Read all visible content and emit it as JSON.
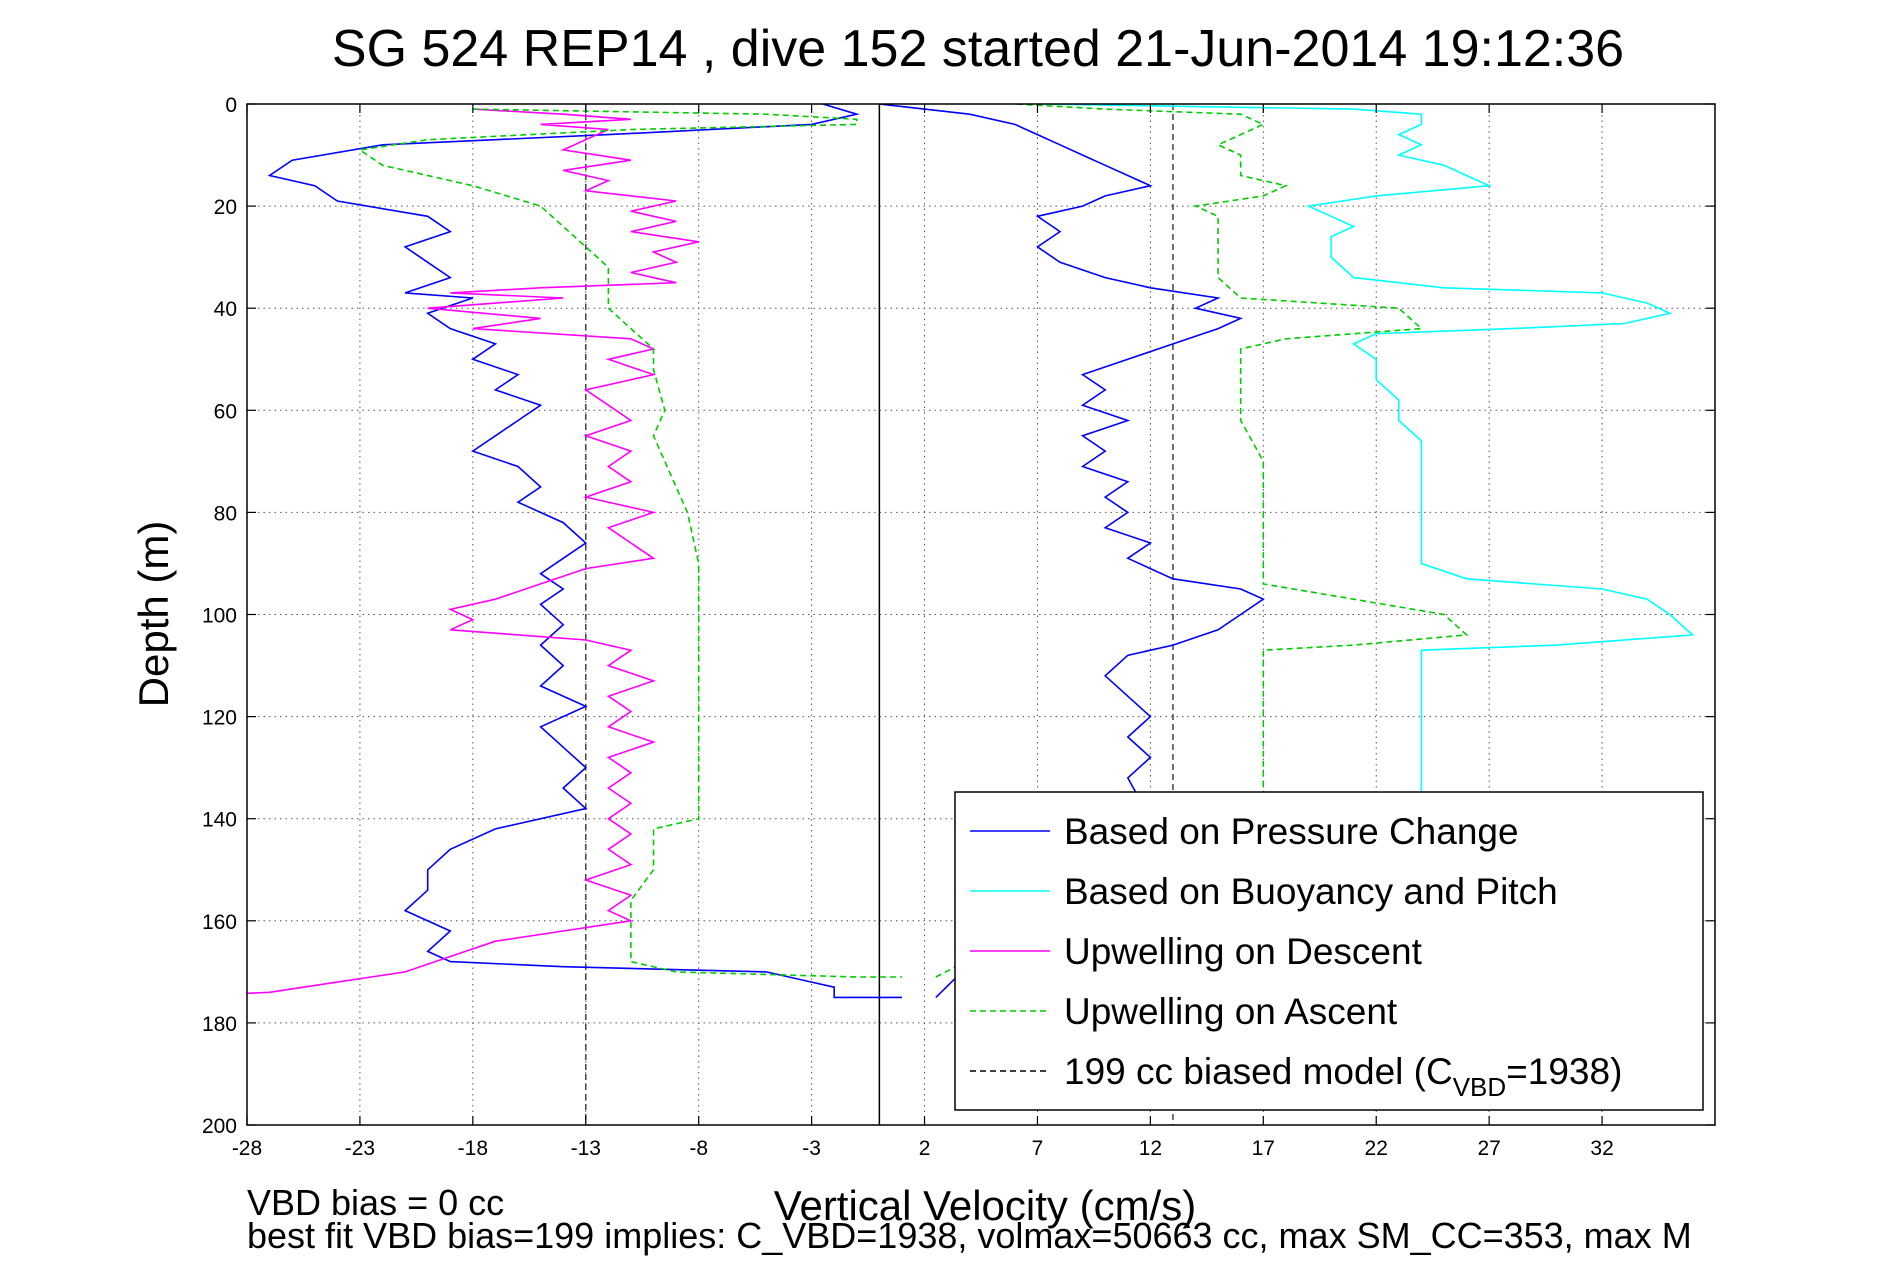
{
  "chart_data": {
    "type": "line",
    "title": "SG 524   REP14  , dive 152 started 21-Jun-2014 19:12:36",
    "xlabel": "Vertical Velocity (cm/s)",
    "ylabel": "Depth (m)",
    "xlim": [
      -28,
      37
    ],
    "ylim": [
      0,
      200
    ],
    "y_reversed": true,
    "grid": true,
    "xticks": [
      -28,
      -23,
      -18,
      -13,
      -8,
      -3,
      2,
      7,
      12,
      17,
      22,
      27,
      32
    ],
    "yticks": [
      0,
      20,
      40,
      60,
      80,
      100,
      120,
      140,
      160,
      180,
      200
    ],
    "vlines": [
      {
        "x": 0,
        "style": "solid"
      },
      {
        "x": -13,
        "style": "dashed"
      },
      {
        "x": 13,
        "style": "dashed"
      }
    ],
    "legend_position": "bottom-right",
    "legend": [
      {
        "label": "Based on Pressure Change",
        "color": "#0000ff",
        "style": "solid"
      },
      {
        "label": "Based on Buoyancy and Pitch",
        "color": "#00ffff",
        "style": "solid"
      },
      {
        "label": "Upwelling on Descent",
        "color": "#ff00ff",
        "style": "solid"
      },
      {
        "label": "Upwelling on Ascent",
        "color": "#00cc00",
        "style": "dashed"
      },
      {
        "label": "199 cc biased model (C",
        "sub": "VBD",
        "tail": "=1938)",
        "color": "#000000",
        "style": "dashed"
      }
    ],
    "series": [
      {
        "name": "Based on Pressure Change",
        "color": "#0000ff",
        "dash": false,
        "points": [
          [
            -2.5,
            0
          ],
          [
            -1,
            2
          ],
          [
            -3,
            4
          ],
          [
            -12,
            6
          ],
          [
            -22,
            8
          ],
          [
            -26,
            11
          ],
          [
            -27,
            14
          ],
          [
            -25,
            16
          ],
          [
            -24,
            19
          ],
          [
            -20,
            22
          ],
          [
            -19,
            25
          ],
          [
            -21,
            28
          ],
          [
            -20,
            31
          ],
          [
            -19,
            34
          ],
          [
            -21,
            37
          ],
          [
            -18,
            38
          ],
          [
            -20,
            41
          ],
          [
            -19,
            44
          ],
          [
            -17,
            47
          ],
          [
            -18,
            50
          ],
          [
            -16,
            53
          ],
          [
            -17,
            56
          ],
          [
            -15,
            59
          ],
          [
            -16,
            62
          ],
          [
            -17,
            65
          ],
          [
            -18,
            68
          ],
          [
            -16,
            71
          ],
          [
            -15,
            75
          ],
          [
            -16,
            78
          ],
          [
            -14,
            82
          ],
          [
            -13,
            86
          ],
          [
            -14,
            89
          ],
          [
            -15,
            92
          ],
          [
            -14,
            95
          ],
          [
            -15,
            98
          ],
          [
            -14,
            102
          ],
          [
            -15,
            106
          ],
          [
            -14,
            110
          ],
          [
            -15,
            114
          ],
          [
            -13,
            118
          ],
          [
            -15,
            122
          ],
          [
            -14,
            126
          ],
          [
            -13,
            130
          ],
          [
            -14,
            134
          ],
          [
            -13,
            138
          ],
          [
            -17,
            142
          ],
          [
            -19,
            146
          ],
          [
            -20,
            150
          ],
          [
            -20,
            154
          ],
          [
            -21,
            158
          ],
          [
            -19,
            162
          ],
          [
            -20,
            166
          ],
          [
            -19,
            168
          ],
          [
            -14,
            169
          ],
          [
            -5,
            170
          ],
          [
            -3,
            172
          ],
          [
            -2,
            173
          ],
          [
            -2,
            175
          ],
          [
            0,
            175
          ],
          [
            1,
            175
          ]
        ]
      },
      {
        "name": "Based on Pressure Change (ascent)",
        "color": "#0000ff",
        "dash": false,
        "points": [
          [
            2.5,
            175
          ],
          [
            11.5,
            136
          ],
          [
            11,
            132
          ],
          [
            12,
            128
          ],
          [
            11,
            124
          ],
          [
            12,
            120
          ],
          [
            11,
            116
          ],
          [
            10,
            112
          ],
          [
            11,
            108
          ],
          [
            13,
            106
          ],
          [
            15,
            103
          ],
          [
            16,
            100
          ],
          [
            17,
            97
          ],
          [
            16,
            95
          ],
          [
            13,
            93
          ],
          [
            12,
            91
          ],
          [
            11,
            89
          ],
          [
            12,
            86
          ],
          [
            10,
            83
          ],
          [
            11,
            80
          ],
          [
            10,
            77
          ],
          [
            11,
            74
          ],
          [
            9,
            71
          ],
          [
            10,
            68
          ],
          [
            9,
            65
          ],
          [
            11,
            62
          ],
          [
            9,
            59
          ],
          [
            10,
            56
          ],
          [
            9,
            53
          ],
          [
            11,
            50
          ],
          [
            13,
            47
          ],
          [
            15,
            44
          ],
          [
            16,
            42
          ],
          [
            14,
            40
          ],
          [
            15,
            38
          ],
          [
            12,
            36
          ],
          [
            10,
            34
          ],
          [
            8,
            31
          ],
          [
            7,
            28
          ],
          [
            8,
            25
          ],
          [
            7,
            22
          ],
          [
            9,
            20
          ],
          [
            10,
            18
          ],
          [
            12,
            16
          ],
          [
            11,
            14
          ],
          [
            10,
            12
          ],
          [
            9,
            10
          ],
          [
            8,
            8
          ],
          [
            7,
            6
          ],
          [
            6,
            4
          ],
          [
            4,
            2
          ],
          [
            0,
            0
          ]
        ]
      },
      {
        "name": "Based on Buoyancy and Pitch",
        "color": "#00ffff",
        "dash": false,
        "points": [
          [
            7,
            0
          ],
          [
            21,
            1
          ],
          [
            24,
            2
          ],
          [
            24,
            4
          ],
          [
            23,
            6
          ],
          [
            24,
            8
          ],
          [
            23,
            10
          ],
          [
            25,
            12
          ],
          [
            26,
            14
          ],
          [
            27,
            16
          ],
          [
            22,
            18
          ],
          [
            19,
            20
          ],
          [
            20,
            22
          ],
          [
            21,
            24
          ],
          [
            20,
            26
          ],
          [
            20,
            30
          ],
          [
            21,
            34
          ],
          [
            25,
            36
          ],
          [
            32,
            37
          ],
          [
            34,
            39
          ],
          [
            35,
            41
          ],
          [
            33,
            43
          ],
          [
            28,
            44
          ],
          [
            22,
            45
          ],
          [
            21,
            47
          ],
          [
            22,
            50
          ],
          [
            22,
            54
          ],
          [
            23,
            58
          ],
          [
            23,
            62
          ],
          [
            24,
            66
          ],
          [
            24,
            70
          ],
          [
            24,
            75
          ],
          [
            24,
            80
          ],
          [
            24,
            85
          ],
          [
            24,
            90
          ],
          [
            26,
            93
          ],
          [
            32,
            95
          ],
          [
            34,
            97
          ],
          [
            35,
            100
          ],
          [
            36,
            104
          ],
          [
            30,
            106
          ],
          [
            24,
            107
          ],
          [
            24,
            110
          ],
          [
            24,
            115
          ],
          [
            24,
            120
          ],
          [
            24,
            125
          ],
          [
            24,
            130
          ],
          [
            24,
            134
          ],
          [
            24,
            136
          ]
        ]
      },
      {
        "name": "Upwelling on Descent",
        "color": "#ff00ff",
        "dash": false,
        "points": [
          [
            -18,
            1
          ],
          [
            -14,
            2
          ],
          [
            -11,
            3
          ],
          [
            -15,
            4
          ],
          [
            -12,
            5
          ],
          [
            -13,
            7
          ],
          [
            -14,
            9
          ],
          [
            -11,
            11
          ],
          [
            -14,
            13
          ],
          [
            -12,
            15
          ],
          [
            -13,
            17
          ],
          [
            -9,
            19
          ],
          [
            -11,
            21
          ],
          [
            -9,
            23
          ],
          [
            -11,
            25
          ],
          [
            -8,
            27
          ],
          [
            -10,
            29
          ],
          [
            -9,
            31
          ],
          [
            -11,
            33
          ],
          [
            -9,
            35
          ],
          [
            -15,
            36
          ],
          [
            -19,
            37
          ],
          [
            -14,
            38
          ],
          [
            -20,
            40
          ],
          [
            -15,
            42
          ],
          [
            -18,
            44
          ],
          [
            -11,
            46
          ],
          [
            -10,
            48
          ],
          [
            -12,
            50
          ],
          [
            -10,
            53
          ],
          [
            -13,
            56
          ],
          [
            -12,
            59
          ],
          [
            -11,
            62
          ],
          [
            -13,
            65
          ],
          [
            -11,
            68
          ],
          [
            -12,
            71
          ],
          [
            -11,
            74
          ],
          [
            -13,
            77
          ],
          [
            -10,
            80
          ],
          [
            -12,
            83
          ],
          [
            -11,
            86
          ],
          [
            -10,
            89
          ],
          [
            -13,
            91
          ],
          [
            -15,
            94
          ],
          [
            -17,
            97
          ],
          [
            -19,
            99
          ],
          [
            -18,
            101
          ],
          [
            -19,
            103
          ],
          [
            -13,
            105
          ],
          [
            -11,
            107
          ],
          [
            -12,
            110
          ],
          [
            -10,
            113
          ],
          [
            -12,
            116
          ],
          [
            -11,
            119
          ],
          [
            -12,
            122
          ],
          [
            -10,
            125
          ],
          [
            -12,
            128
          ],
          [
            -11,
            131
          ],
          [
            -12,
            134
          ],
          [
            -11,
            137
          ],
          [
            -12,
            140
          ],
          [
            -11,
            143
          ],
          [
            -12,
            146
          ],
          [
            -11,
            149
          ],
          [
            -13,
            152
          ],
          [
            -11,
            155
          ],
          [
            -12,
            158
          ],
          [
            -11,
            160
          ],
          [
            -14,
            162
          ],
          [
            -17,
            164
          ],
          [
            -19,
            167
          ],
          [
            -21,
            170
          ],
          [
            -24,
            172
          ],
          [
            -27,
            174
          ],
          [
            -32,
            175
          ]
        ]
      },
      {
        "name": "Upwelling on Ascent",
        "color": "#00cc00",
        "dash": true,
        "points": [
          [
            -18,
            1
          ],
          [
            -5,
            2
          ],
          [
            -1,
            3
          ],
          [
            -1,
            4
          ],
          [
            -11,
            5
          ],
          [
            -20,
            7
          ],
          [
            -23,
            9
          ],
          [
            -22,
            12
          ],
          [
            -18,
            16
          ],
          [
            -15,
            20
          ],
          [
            -14,
            24
          ],
          [
            -13,
            28
          ],
          [
            -12,
            32
          ],
          [
            -12,
            36
          ],
          [
            -12,
            40
          ],
          [
            -11,
            44
          ],
          [
            -10,
            48
          ],
          [
            -10,
            52
          ],
          [
            -9.5,
            60
          ],
          [
            -10,
            65
          ],
          [
            -9.5,
            70
          ],
          [
            -9,
            75
          ],
          [
            -8.5,
            80
          ],
          [
            -8,
            90
          ],
          [
            -8,
            100
          ],
          [
            -8,
            110
          ],
          [
            -8,
            120
          ],
          [
            -8,
            130
          ],
          [
            -8,
            140
          ],
          [
            -10,
            142
          ],
          [
            -10,
            150
          ],
          [
            -11,
            156
          ],
          [
            -11,
            162
          ],
          [
            -11,
            168
          ],
          [
            -9,
            170
          ],
          [
            -1,
            171
          ],
          [
            1,
            171
          ]
        ]
      },
      {
        "name": "Upwelling on Ascent (ascent)",
        "color": "#00cc00",
        "dash": true,
        "points": [
          [
            2.5,
            171
          ],
          [
            17,
            138
          ],
          [
            17,
            130
          ],
          [
            17,
            120
          ],
          [
            17,
            110
          ],
          [
            17,
            107
          ],
          [
            21,
            106
          ],
          [
            26,
            104
          ],
          [
            25,
            100
          ],
          [
            21,
            97
          ],
          [
            17,
            94
          ],
          [
            17,
            88
          ],
          [
            17,
            82
          ],
          [
            17,
            76
          ],
          [
            17,
            70
          ],
          [
            16,
            62
          ],
          [
            16,
            55
          ],
          [
            16,
            48
          ],
          [
            18,
            46
          ],
          [
            24,
            44
          ],
          [
            23,
            40
          ],
          [
            16,
            38
          ],
          [
            15,
            34
          ],
          [
            15,
            28
          ],
          [
            15,
            22
          ],
          [
            14,
            20
          ],
          [
            17,
            18
          ],
          [
            18,
            16
          ],
          [
            16,
            14
          ],
          [
            16,
            10
          ],
          [
            15,
            8
          ],
          [
            17,
            4
          ],
          [
            16,
            2
          ],
          [
            10,
            1
          ],
          [
            6,
            0
          ]
        ]
      }
    ]
  },
  "footer": {
    "line1": "VBD bias = 0 cc",
    "line2": "best fit VBD bias=199 implies: C_VBD=1938, volmax=50663 cc, max SM_CC=353, max M"
  }
}
